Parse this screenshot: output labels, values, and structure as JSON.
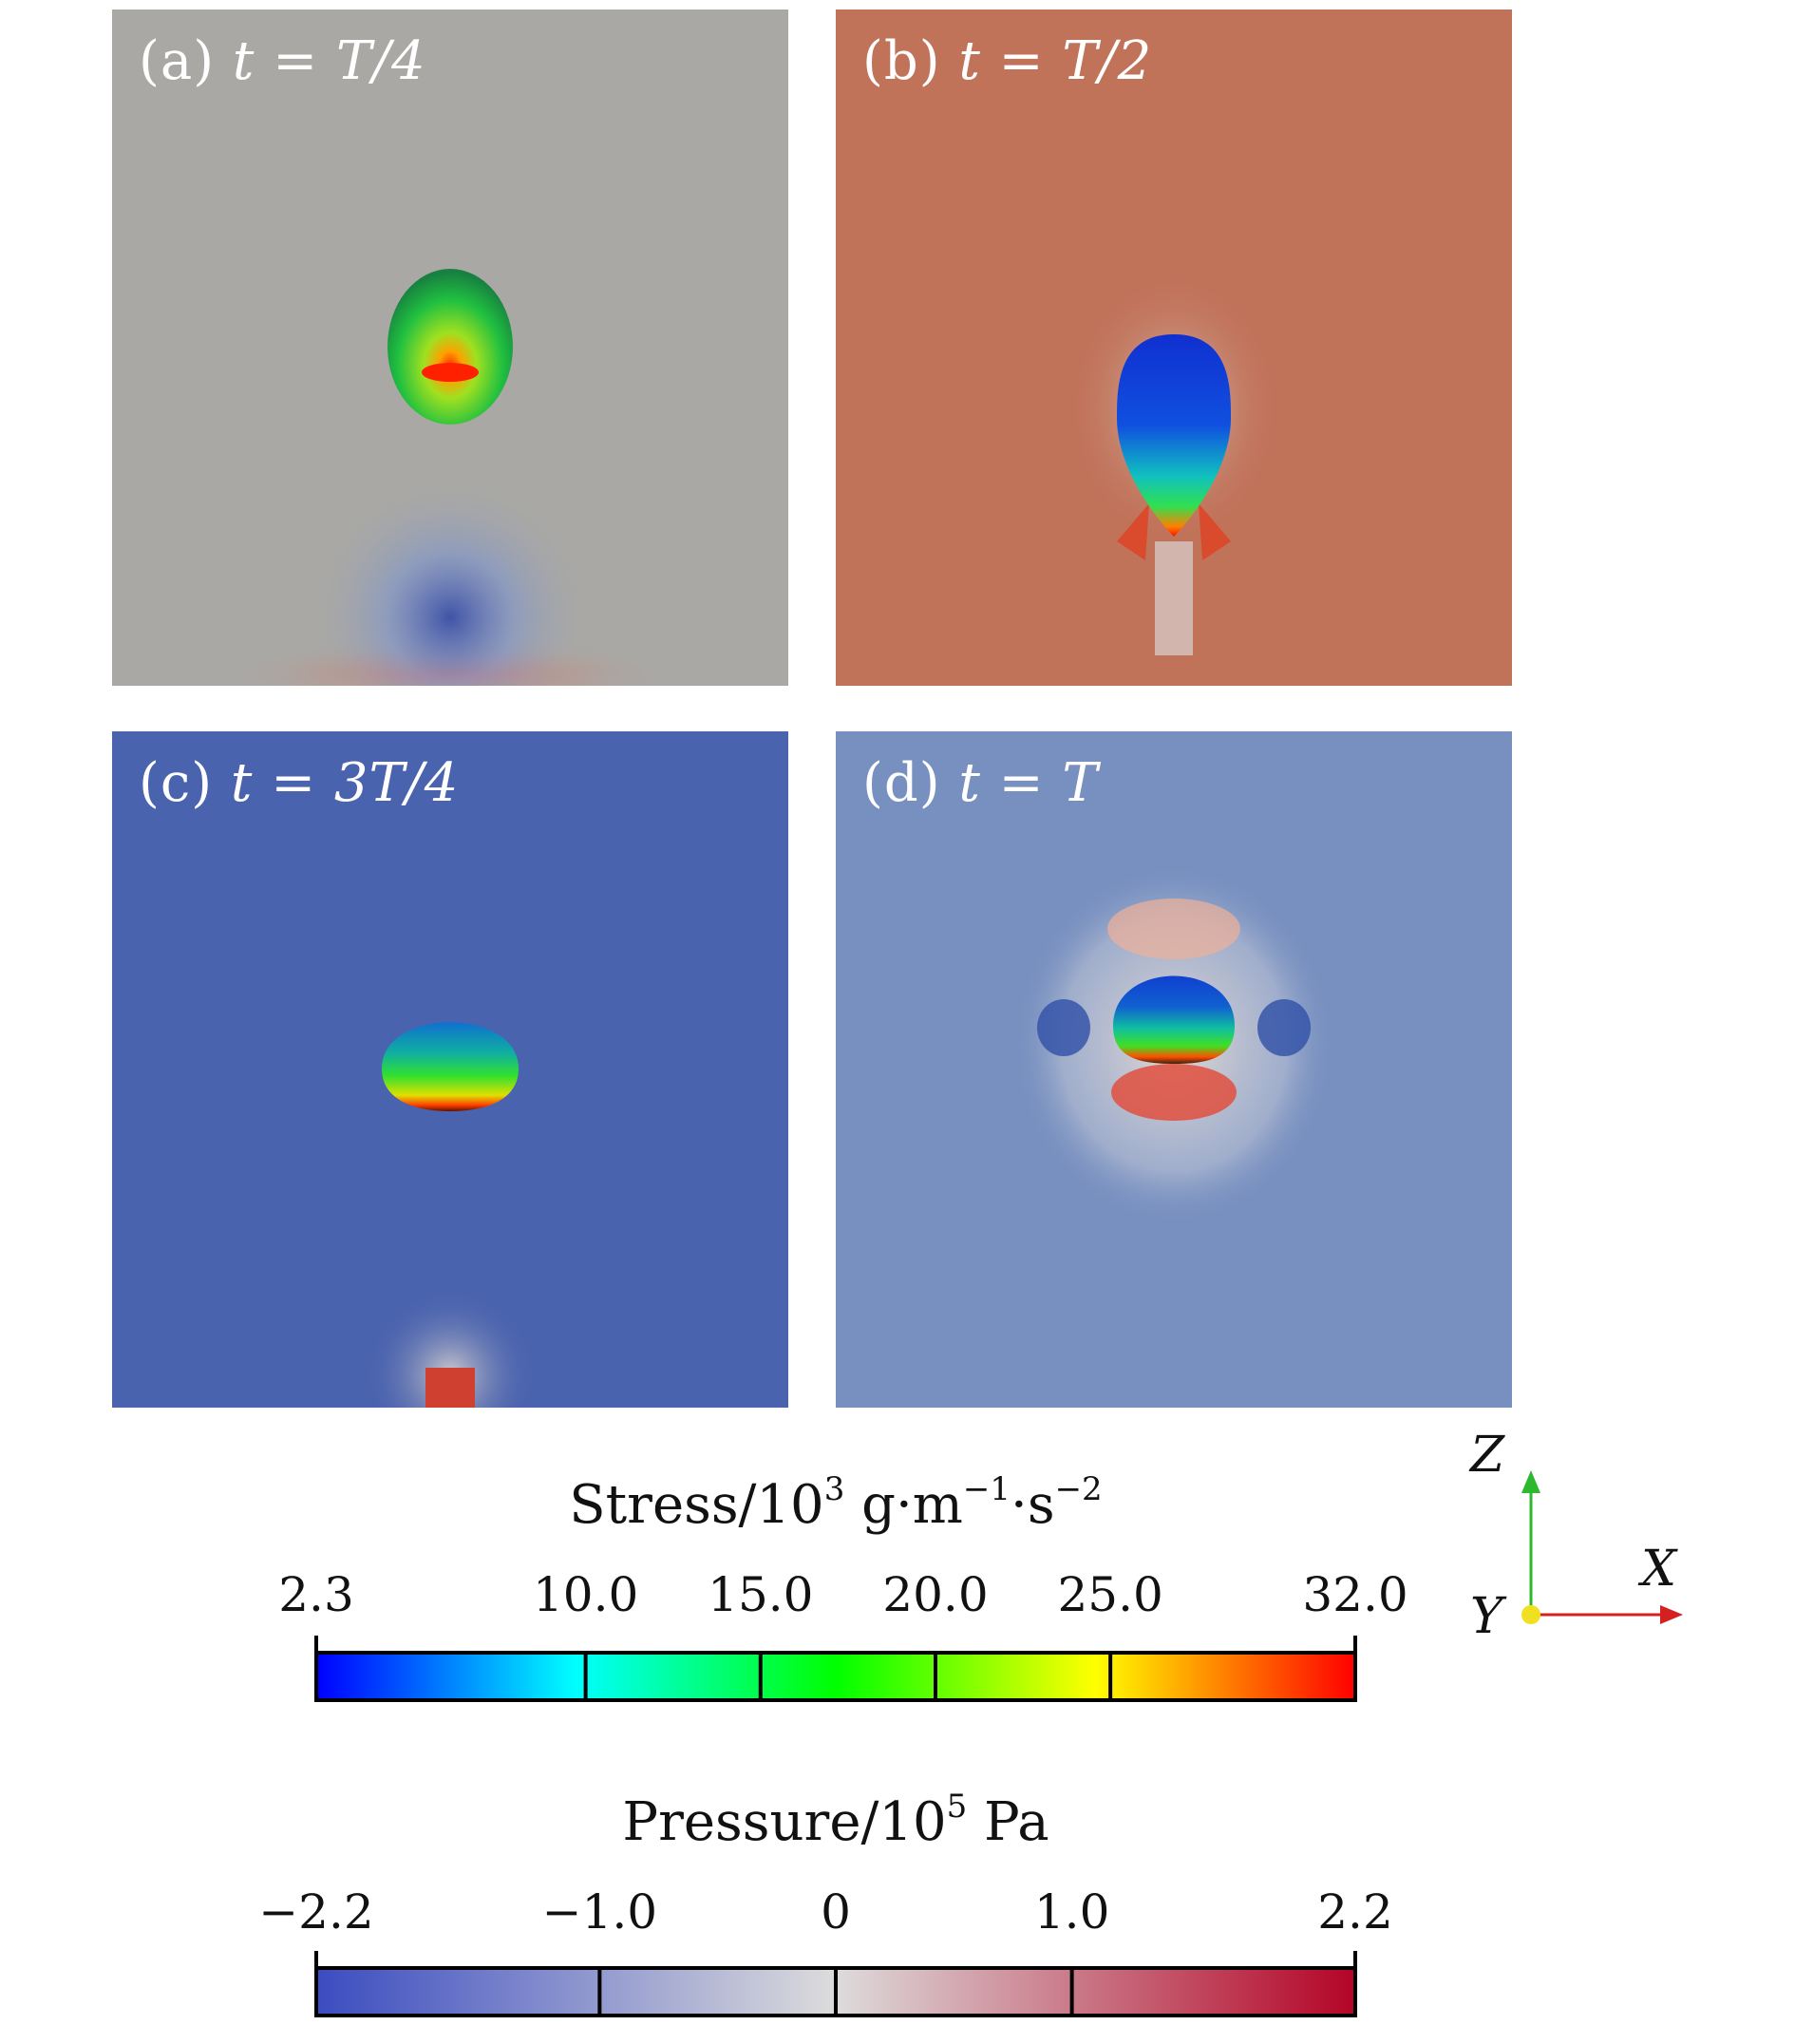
{
  "panels": [
    {
      "id": "a",
      "prefix": "(a)",
      "tvar": "t",
      "eq": " = ",
      "tval": "T/4"
    },
    {
      "id": "b",
      "prefix": "(b)",
      "tvar": "t",
      "eq": " = ",
      "tval": "T/2"
    },
    {
      "id": "c",
      "prefix": "(c)",
      "tvar": "t",
      "eq": " = ",
      "tval": "3T/4"
    },
    {
      "id": "d",
      "prefix": "(d)",
      "tvar": "t",
      "eq": " = ",
      "tval": "T"
    }
  ],
  "stress_bar": {
    "title_main": "Stress/10",
    "title_exp": "3",
    "title_units_a": " g·m",
    "title_exp2": "−1",
    "title_units_b": "·s",
    "title_exp3": "−2",
    "range": [
      2.3,
      32.0
    ],
    "ticks": [
      "2.3",
      "10.0",
      "15.0",
      "20.0",
      "25.0",
      "32.0"
    ],
    "tick_values": [
      2.3,
      10.0,
      15.0,
      20.0,
      25.0,
      32.0
    ],
    "colors": [
      "#0000ff",
      "#00ffff",
      "#00ff00",
      "#ffff00",
      "#ff0000"
    ]
  },
  "pressure_bar": {
    "title_main": "Pressure/10",
    "title_exp": "5",
    "title_units": " Pa",
    "range": [
      -2.2,
      2.2
    ],
    "ticks": [
      "−2.2",
      "−1.0",
      "0",
      "1.0",
      "2.2"
    ],
    "tick_values": [
      -2.2,
      -1.0,
      0,
      1.0,
      2.2
    ],
    "colors": [
      "#3b4cc0",
      "#dddcdc",
      "#b40426"
    ]
  },
  "axes": {
    "z": "Z",
    "x": "X",
    "y": "Y"
  },
  "colors": {
    "panel_a_bg": "#a9a8a5",
    "panel_b_bg": "#c1735a",
    "panel_c_bg": "#4a63ae",
    "panel_d_bg": "#7890c0",
    "axis_green": "#2eb82e",
    "axis_red": "#d42020",
    "axis_yellow": "#f0e020"
  }
}
